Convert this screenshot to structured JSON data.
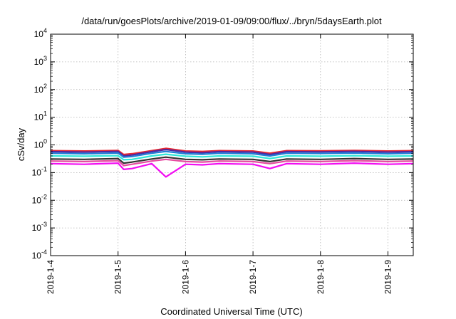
{
  "chart_data": {
    "type": "line",
    "title": "/data/run/goesPlots/archive/2019-01-09/09:00/flux/../bryn/5daysEarth.plot",
    "xlabel": "Coordinated Universal Time (UTC)",
    "ylabel": "cSv/day",
    "xscale": "time",
    "yscale": "log",
    "xlim": [
      "2019-01-04T00:00",
      "2019-01-09T09:00"
    ],
    "ylim": [
      0.0001,
      10000
    ],
    "grid": true,
    "x_ticks": [
      "2019-1-4",
      "2019-1-5",
      "2019-1-6",
      "2019-1-7",
      "2019-1-8",
      "2019-1-9"
    ],
    "y_ticks": [
      {
        "base": "10",
        "exp": "-4",
        "value": 0.0001
      },
      {
        "base": "10",
        "exp": "-3",
        "value": 0.001
      },
      {
        "base": "10",
        "exp": "-2",
        "value": 0.01
      },
      {
        "base": "10",
        "exp": "-1",
        "value": 0.1
      },
      {
        "base": "10",
        "exp": "0",
        "value": 1
      },
      {
        "base": "10",
        "exp": "1",
        "value": 10
      },
      {
        "base": "10",
        "exp": "2",
        "value": 100
      },
      {
        "base": "10",
        "exp": "3",
        "value": 1000
      },
      {
        "base": "10",
        "exp": "4",
        "value": 10000
      }
    ],
    "x": [
      "2019-01-04T00:00",
      "2019-01-04T12:00",
      "2019-01-05T00:00",
      "2019-01-05T02:00",
      "2019-01-05T05:00",
      "2019-01-05T12:00",
      "2019-01-05T17:00",
      "2019-01-06T00:00",
      "2019-01-06T06:00",
      "2019-01-06T12:00",
      "2019-01-07T00:00",
      "2019-01-07T06:00",
      "2019-01-07T12:00",
      "2019-01-08T00:00",
      "2019-01-08T12:00",
      "2019-01-09T00:00",
      "2019-01-09T09:00"
    ],
    "series": [
      {
        "color": "#e8262e",
        "values": [
          0.62,
          0.6,
          0.63,
          0.45,
          0.48,
          0.62,
          0.75,
          0.6,
          0.58,
          0.62,
          0.6,
          0.5,
          0.62,
          0.61,
          0.63,
          0.6,
          0.62
        ]
      },
      {
        "color": "#4b2aa3",
        "values": [
          0.57,
          0.55,
          0.58,
          0.4,
          0.43,
          0.57,
          0.68,
          0.55,
          0.52,
          0.57,
          0.55,
          0.45,
          0.57,
          0.56,
          0.58,
          0.55,
          0.57
        ]
      },
      {
        "color": "#1f7fd6",
        "values": [
          0.5,
          0.48,
          0.51,
          0.36,
          0.38,
          0.5,
          0.58,
          0.48,
          0.46,
          0.5,
          0.48,
          0.4,
          0.5,
          0.49,
          0.51,
          0.48,
          0.5
        ]
      },
      {
        "color": "#2ee6d8",
        "values": [
          0.4,
          0.39,
          0.41,
          0.29,
          0.3,
          0.4,
          0.46,
          0.39,
          0.37,
          0.4,
          0.39,
          0.32,
          0.4,
          0.39,
          0.41,
          0.39,
          0.4
        ]
      },
      {
        "color": "#333333",
        "values": [
          0.31,
          0.3,
          0.32,
          0.22,
          0.24,
          0.31,
          0.36,
          0.3,
          0.29,
          0.31,
          0.3,
          0.25,
          0.31,
          0.3,
          0.32,
          0.3,
          0.31
        ]
      },
      {
        "color": "#e64ba0",
        "values": [
          0.26,
          0.25,
          0.27,
          0.18,
          0.2,
          0.26,
          0.3,
          0.25,
          0.24,
          0.26,
          0.25,
          0.21,
          0.26,
          0.25,
          0.27,
          0.25,
          0.26
        ]
      },
      {
        "color": "#f20df2",
        "values": [
          0.21,
          0.2,
          0.22,
          0.13,
          0.14,
          0.21,
          0.07,
          0.2,
          0.19,
          0.21,
          0.2,
          0.14,
          0.21,
          0.2,
          0.22,
          0.2,
          0.21
        ]
      }
    ]
  }
}
